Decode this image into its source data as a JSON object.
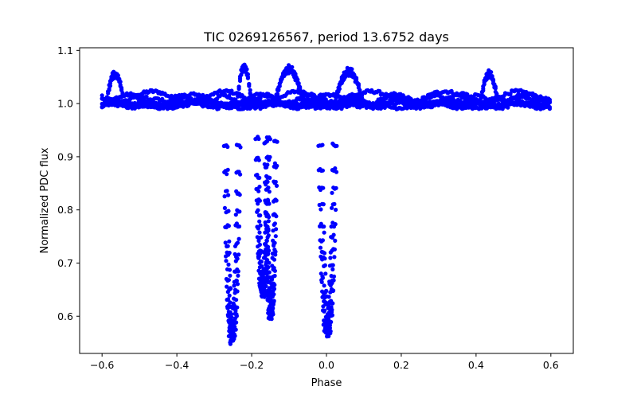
{
  "chart_data": {
    "type": "scatter",
    "title": "TIC 0269126567, period 13.6752 days",
    "xlabel": "Phase",
    "ylabel": "Normalized PDC flux",
    "xlim": [
      -0.66,
      0.66
    ],
    "ylim": [
      0.53,
      1.105
    ],
    "xticks": [
      -0.6,
      -0.4,
      -0.2,
      0.0,
      0.2,
      0.4,
      0.6
    ],
    "xtick_labels": [
      "−0.6",
      "−0.4",
      "−0.2",
      "0.0",
      "0.2",
      "0.4",
      "0.6"
    ],
    "yticks": [
      0.6,
      0.7,
      0.8,
      0.9,
      1.0,
      1.1
    ],
    "ytick_labels": [
      "0.6",
      "0.7",
      "0.8",
      "0.9",
      "1.0",
      "1.1"
    ],
    "marker_color": "#0000ff",
    "grid": false,
    "series": [
      {
        "name": "baseline",
        "x_range": [
          -0.6,
          0.6
        ],
        "baseline": 1.0,
        "scatter": 0.025,
        "strands": 6
      },
      {
        "name": "eclipse-1",
        "center": -0.252,
        "min": 0.545,
        "width": 0.018
      },
      {
        "name": "eclipse-2",
        "center": -0.17,
        "min": 0.635,
        "width": 0.016
      },
      {
        "name": "eclipse-3",
        "center": -0.149,
        "min": 0.59,
        "width": 0.014
      },
      {
        "name": "eclipse-4",
        "center": 0.003,
        "min": 0.56,
        "width": 0.02
      },
      {
        "name": "bump-left",
        "x_range": [
          -0.59,
          -0.54
        ],
        "peak": 1.06
      },
      {
        "name": "bump-mid-a",
        "x_range": [
          -0.24,
          -0.2
        ],
        "peak": 1.075
      },
      {
        "name": "bump-mid-b",
        "x_range": [
          -0.14,
          -0.06
        ],
        "peak": 1.07
      },
      {
        "name": "bump-mid-c",
        "x_range": [
          0.02,
          0.1
        ],
        "peak": 1.065
      },
      {
        "name": "bump-right",
        "x_range": [
          0.41,
          0.46
        ],
        "peak": 1.06
      }
    ]
  }
}
